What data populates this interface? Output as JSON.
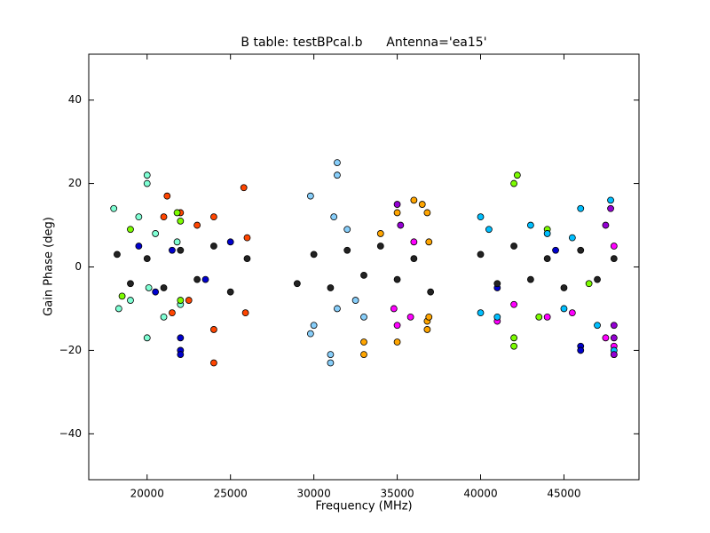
{
  "chart_data": {
    "type": "scatter",
    "title": "B table: testBPcal.b      Antenna='ea15'",
    "x_label": "Frequency (MHz)",
    "y_label": "Gain Phase (deg)",
    "xlim": [
      16500,
      49500
    ],
    "ylim": [
      -51,
      51
    ],
    "xticks": [
      20000,
      25000,
      30000,
      35000,
      40000,
      45000
    ],
    "yticks": [
      {
        "value": -40,
        "label": "−40"
      },
      {
        "value": -20,
        "label": "−20"
      },
      0,
      20,
      40
    ],
    "grid": false,
    "series": [
      {
        "color": "#7fffd4",
        "x": [
          18000,
          18300,
          19000,
          19500,
          20000,
          20000,
          20000,
          20100,
          20500,
          21000,
          21800,
          22000
        ],
        "values": [
          14,
          -10,
          -8,
          12,
          22,
          -17,
          20,
          -5,
          8,
          -12,
          6,
          -9
        ]
      },
      {
        "color": "#ff4500",
        "x": [
          21000,
          21200,
          21500,
          22000,
          22500,
          23000,
          24000,
          24000,
          24000,
          25800,
          25900,
          26000
        ],
        "values": [
          12,
          17,
          -11,
          13,
          -8,
          10,
          12,
          -23,
          -15,
          19,
          -11,
          7
        ]
      },
      {
        "color": "#0000cd",
        "x": [
          19500,
          20500,
          21500,
          22000,
          22000,
          22000,
          23500,
          25000,
          41000,
          44500,
          46000,
          46000
        ],
        "values": [
          5,
          -6,
          4,
          -17,
          -20,
          -21,
          -3,
          6,
          -5,
          4,
          -19,
          -20
        ]
      },
      {
        "color": "#222222",
        "x": [
          18200,
          19000,
          20000,
          21000,
          22000,
          23000,
          24000,
          25000,
          26000,
          29000,
          30000,
          31000,
          32000,
          33000,
          34000,
          35000,
          36000,
          37000,
          40000,
          41000,
          42000,
          43000,
          44000,
          45000,
          46000,
          47000,
          48000
        ],
        "values": [
          3,
          -4,
          2,
          -5,
          4,
          -3,
          5,
          -6,
          2,
          -4,
          3,
          -5,
          4,
          -2,
          5,
          -3,
          2,
          -6,
          3,
          -4,
          5,
          -3,
          2,
          -5,
          4,
          -3,
          2
        ]
      },
      {
        "color": "#87cefa",
        "x": [
          29800,
          29800,
          30000,
          31000,
          31000,
          31200,
          31400,
          31400,
          31400,
          32000,
          32500,
          33000
        ],
        "values": [
          17,
          -16,
          -14,
          -23,
          -21,
          12,
          25,
          22,
          -10,
          9,
          -8,
          -12
        ]
      },
      {
        "color": "#ffa500",
        "x": [
          33000,
          33000,
          34000,
          35000,
          35000,
          36000,
          36500,
          36800,
          36800,
          36800,
          36900,
          36900
        ],
        "values": [
          -21,
          -18,
          8,
          -18,
          13,
          16,
          15,
          -15,
          13,
          -13,
          6,
          -12
        ]
      },
      {
        "color": "#ff00ff",
        "x": [
          34800,
          35000,
          35800,
          36000,
          41000,
          42000,
          44000,
          45500,
          47500,
          48000,
          48000,
          48000
        ],
        "values": [
          -10,
          -14,
          -12,
          6,
          -13,
          -9,
          -12,
          -11,
          -17,
          -21,
          -19,
          5
        ]
      },
      {
        "color": "#7cfc00",
        "x": [
          18500,
          19000,
          21800,
          22000,
          22000,
          42000,
          42000,
          42000,
          42200,
          43500,
          44000,
          46500
        ],
        "values": [
          -7,
          9,
          13,
          -8,
          11,
          -17,
          -19,
          20,
          22,
          -12,
          9,
          -4
        ]
      },
      {
        "color": "#00bfff",
        "x": [
          40000,
          40000,
          40500,
          41000,
          43000,
          44000,
          45000,
          45500,
          46000,
          47000,
          47800,
          48000
        ],
        "values": [
          12,
          -11,
          9,
          -12,
          10,
          8,
          -10,
          7,
          14,
          -14,
          16,
          -20
        ]
      },
      {
        "color": "#9400d3",
        "x": [
          47500,
          48000,
          48000,
          48000,
          47800,
          35000,
          35200
        ],
        "values": [
          10,
          -21,
          -17,
          -14,
          14,
          15,
          10
        ]
      }
    ]
  }
}
